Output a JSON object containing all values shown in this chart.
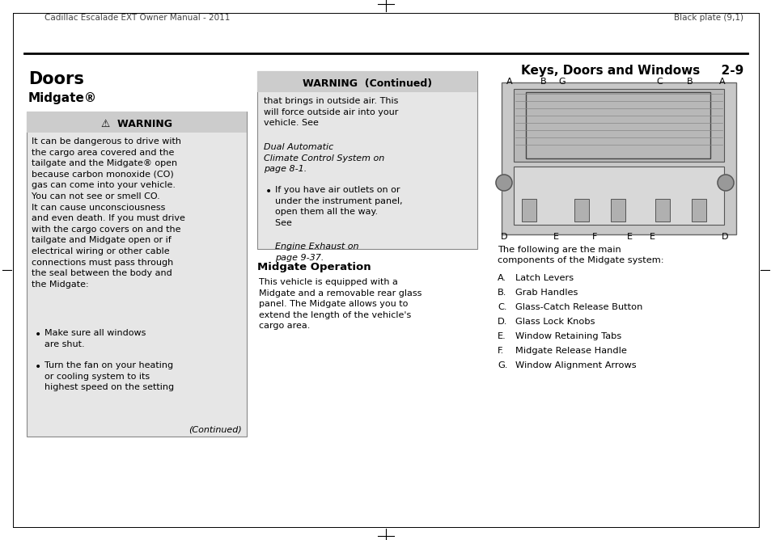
{
  "page_bg": "#ffffff",
  "header_left": "Cadillac Escalade EXT Owner Manual - 2011",
  "header_right": "Black plate (9,1)",
  "section_title": "Keys, Doors and Windows",
  "section_num": "2-9",
  "main_title": "Doors",
  "subtitle": "Midgate®",
  "warning_title": "⚠  WARNING",
  "warning_body": "It can be dangerous to drive with\nthe cargo area covered and the\ntailgate and the Midgate® open\nbecause carbon monoxide (CO)\ngas can come into your vehicle.\nYou can not see or smell CO.\nIt can cause unconsciousness\nand even death. If you must drive\nwith the cargo covers on and the\ntailgate and Midgate open or if\nelectrical wiring or other cable\nconnections must pass through\nthe seal between the body and\nthe Midgate:",
  "bullet1": "Make sure all windows\nare shut.",
  "bullet2": "Turn the fan on your heating\nor cooling system to its\nhighest speed on the setting",
  "continued_label": "(Continued)",
  "warning_continued_title": "WARNING  (Continued)",
  "warning_continued_body1": "that brings in outside air. This\nwill force outside air into your\nvehicle. See ",
  "warning_continued_body1_italic": "Dual Automatic\nClimate Control System on\npage 8-1.",
  "bullet3_normal": "If you have air outlets on or\nunder the instrument panel,\nopen them all the way.\nSee ",
  "bullet3_italic": "Engine Exhaust on\npage 9-37.",
  "midgate_op_title": "Midgate Operation",
  "midgate_op_body": "This vehicle is equipped with a\nMidgate and a removable rear glass\npanel. The Midgate allows you to\nextend the length of the vehicle's\ncargo area.",
  "components_intro": "The following are the main\ncomponents of the Midgate system:",
  "components": [
    [
      "A.",
      "Latch Levers"
    ],
    [
      "B.",
      "Grab Handles"
    ],
    [
      "C.",
      "Glass-Catch Release Button"
    ],
    [
      "D.",
      "Glass Lock Knobs"
    ],
    [
      "E.",
      "Window Retaining Tabs"
    ],
    [
      "F.",
      "Midgate Release Handle"
    ],
    [
      "G.",
      "Window Alignment Arrows"
    ]
  ],
  "diag_top_labels": [
    [
      "A",
      15
    ],
    [
      "B",
      57
    ],
    [
      "G",
      80
    ],
    [
      "C",
      200
    ],
    [
      "B",
      238
    ],
    [
      "A",
      278
    ]
  ],
  "diag_bot_labels": [
    [
      "D",
      8
    ],
    [
      "E",
      72
    ],
    [
      "F",
      120
    ],
    [
      "E",
      163
    ],
    [
      "E",
      191
    ],
    [
      "D",
      281
    ]
  ]
}
